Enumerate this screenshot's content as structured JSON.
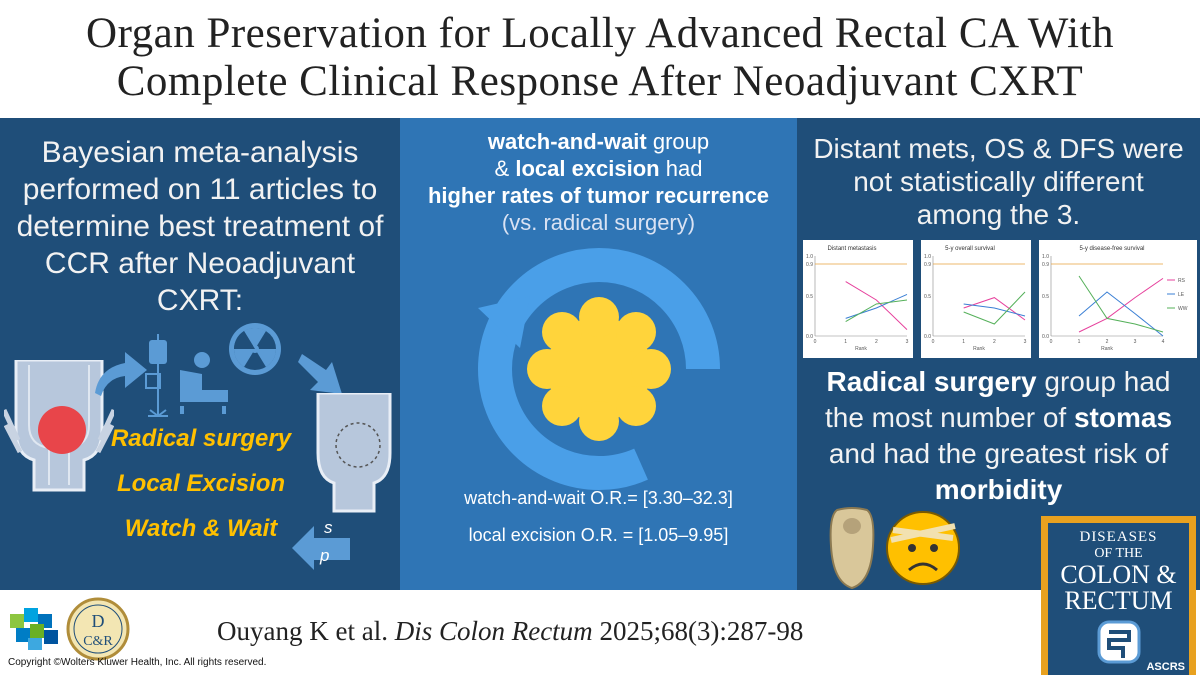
{
  "title": {
    "line1": "Organ Preservation for Locally Advanced Rectal CA With",
    "line2": "Complete Clinical Response After Neoadjuvant CXRT"
  },
  "left": {
    "intro": "Bayesian meta-analysis performed on 11 articles to determine best treatment of CCR after Neoadjuvant CXRT:",
    "treatments": [
      "Radical surgery",
      "Local Excision",
      "Watch & Wait"
    ],
    "sp_s": "s",
    "sp_p": "p"
  },
  "middle": {
    "wow_group": "watch-and-wait",
    "group_word": " group",
    "amp": "& ",
    "local_excision": "local excision",
    "had": " had",
    "higher_rates": "higher rates of tumor recurrence",
    "vs": "(vs. radical surgery)",
    "or_ww": "watch-and-wait O.R.= [3.30–32.3]",
    "or_le": "local excision O.R. = [1.05–9.95]"
  },
  "right": {
    "summary": "Distant mets, OS & DFS were not statistically different among the 3.",
    "rs_bold": "Radical surgery",
    "rs_rest1": " group had the most number of",
    "stomas": "stomas",
    "rs_rest2": " and had the greatest risk of",
    "morbidity": "morbidity"
  },
  "charts": [
    {
      "title": "Distant metastasis",
      "xlabel": "Rank",
      "yticks": [
        "1.0",
        "0.9",
        "0.5",
        "0.0"
      ],
      "xticks": [
        "0",
        "1",
        "2",
        "3"
      ],
      "series": [
        {
          "name": "RS",
          "color": "#e6409c",
          "values": [
            0.68,
            0.45,
            0.08
          ]
        },
        {
          "name": "LE",
          "color": "#3a7fd4",
          "values": [
            0.22,
            0.35,
            0.52
          ]
        },
        {
          "name": "WW",
          "color": "#55b05a",
          "values": [
            0.18,
            0.4,
            0.45
          ]
        }
      ]
    },
    {
      "title": "5-y overall survival",
      "xlabel": "Rank",
      "yticks": [
        "1.0",
        "0.9",
        "0.5",
        "0.0"
      ],
      "xticks": [
        "0",
        "1",
        "2",
        "3"
      ],
      "series": [
        {
          "name": "RS",
          "color": "#e6409c",
          "values": [
            0.35,
            0.48,
            0.2
          ]
        },
        {
          "name": "LE",
          "color": "#3a7fd4",
          "values": [
            0.4,
            0.35,
            0.25
          ]
        },
        {
          "name": "WW",
          "color": "#55b05a",
          "values": [
            0.3,
            0.15,
            0.55
          ]
        }
      ]
    },
    {
      "title": "5-y disease-free survival",
      "xlabel": "Rank",
      "yticks": [
        "1.0",
        "0.9",
        "0.5",
        "0.0"
      ],
      "xticks": [
        "0",
        "1",
        "2",
        "3",
        "4"
      ],
      "legend": [
        "RS",
        "LE",
        "WW"
      ],
      "series": [
        {
          "name": "RS",
          "color": "#e6409c",
          "values": [
            0.05,
            0.22,
            0.48,
            0.72
          ]
        },
        {
          "name": "LE",
          "color": "#3a7fd4",
          "values": [
            0.25,
            0.55,
            0.28,
            0.0
          ]
        },
        {
          "name": "WW",
          "color": "#55b05a",
          "values": [
            0.75,
            0.22,
            0.15,
            0.05
          ]
        }
      ]
    }
  ],
  "journal": {
    "diseases": "DISEASES",
    "of_the": "OF THE",
    "colon": "COLON &",
    "rectum": "RECTUM",
    "ascrs": "ASCRS"
  },
  "logo": {
    "dcr_top": "D",
    "dcr_bottom": "C&R"
  },
  "citation": {
    "authors": "Ouyang K et al. ",
    "journal": "Dis Colon Rectum",
    "ref": " 2025;68(3):287-98"
  },
  "copyright": "Copyright ©Wolters Kluwer Health, Inc. All rights reserved.",
  "colors": {
    "dark_blue": "#1f4e79",
    "mid_blue": "#2f75b5",
    "accent_yellow": "#ffc000",
    "cycle_blue": "#4a9fe8"
  }
}
